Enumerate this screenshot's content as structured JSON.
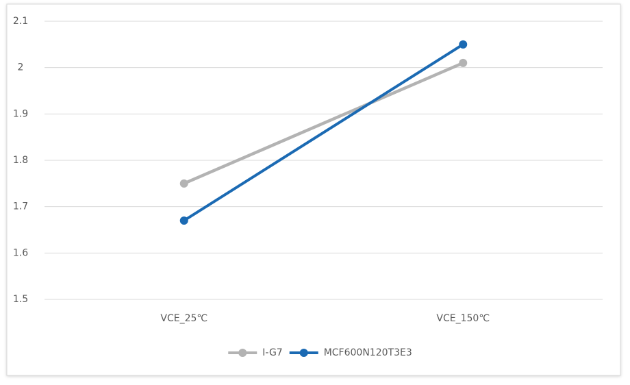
{
  "chart_data": {
    "type": "line",
    "categories": [
      "VCE_25℃",
      "VCE_150℃"
    ],
    "series": [
      {
        "name": "I-G7",
        "color": "#b3b3b3",
        "values": [
          1.75,
          2.01
        ]
      },
      {
        "name": "MCF600N120T3E3",
        "color": "#1b6ab3",
        "values": [
          1.67,
          2.05
        ]
      }
    ],
    "ylim": [
      1.5,
      2.1
    ],
    "yticks": [
      1.5,
      1.6,
      1.7,
      1.8,
      1.9,
      2,
      2.1
    ],
    "grid": true,
    "legend": "bottom"
  }
}
